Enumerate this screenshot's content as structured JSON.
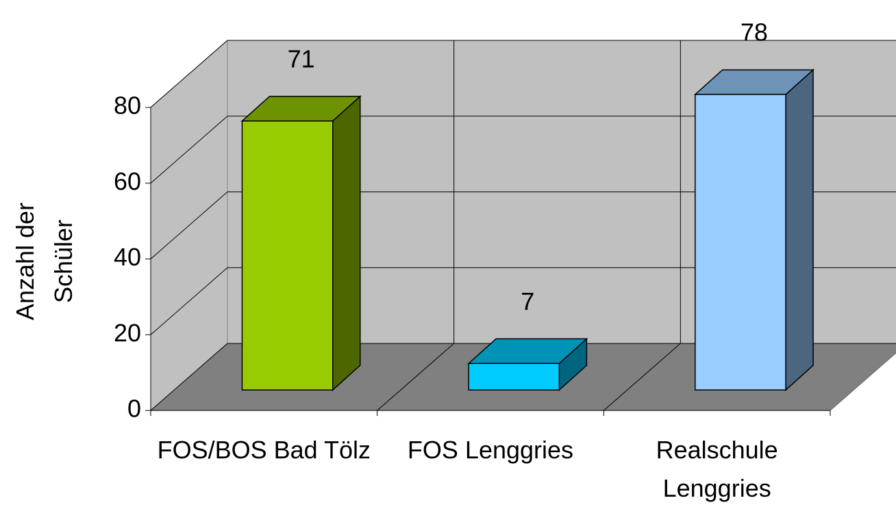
{
  "chart_data": {
    "type": "bar3d",
    "y_label": "Anzahl der Schüler",
    "categories": [
      "FOS/BOS Bad Tölz",
      "FOS Lenggries",
      "Realschule Lenggries"
    ],
    "values": [
      71,
      7,
      78
    ],
    "colors": [
      "#99cc00",
      "#00ccff",
      "#99ccff"
    ],
    "ylim": [
      0,
      80
    ],
    "yticks": [
      0,
      20,
      40,
      60,
      80
    ],
    "grid": true
  }
}
